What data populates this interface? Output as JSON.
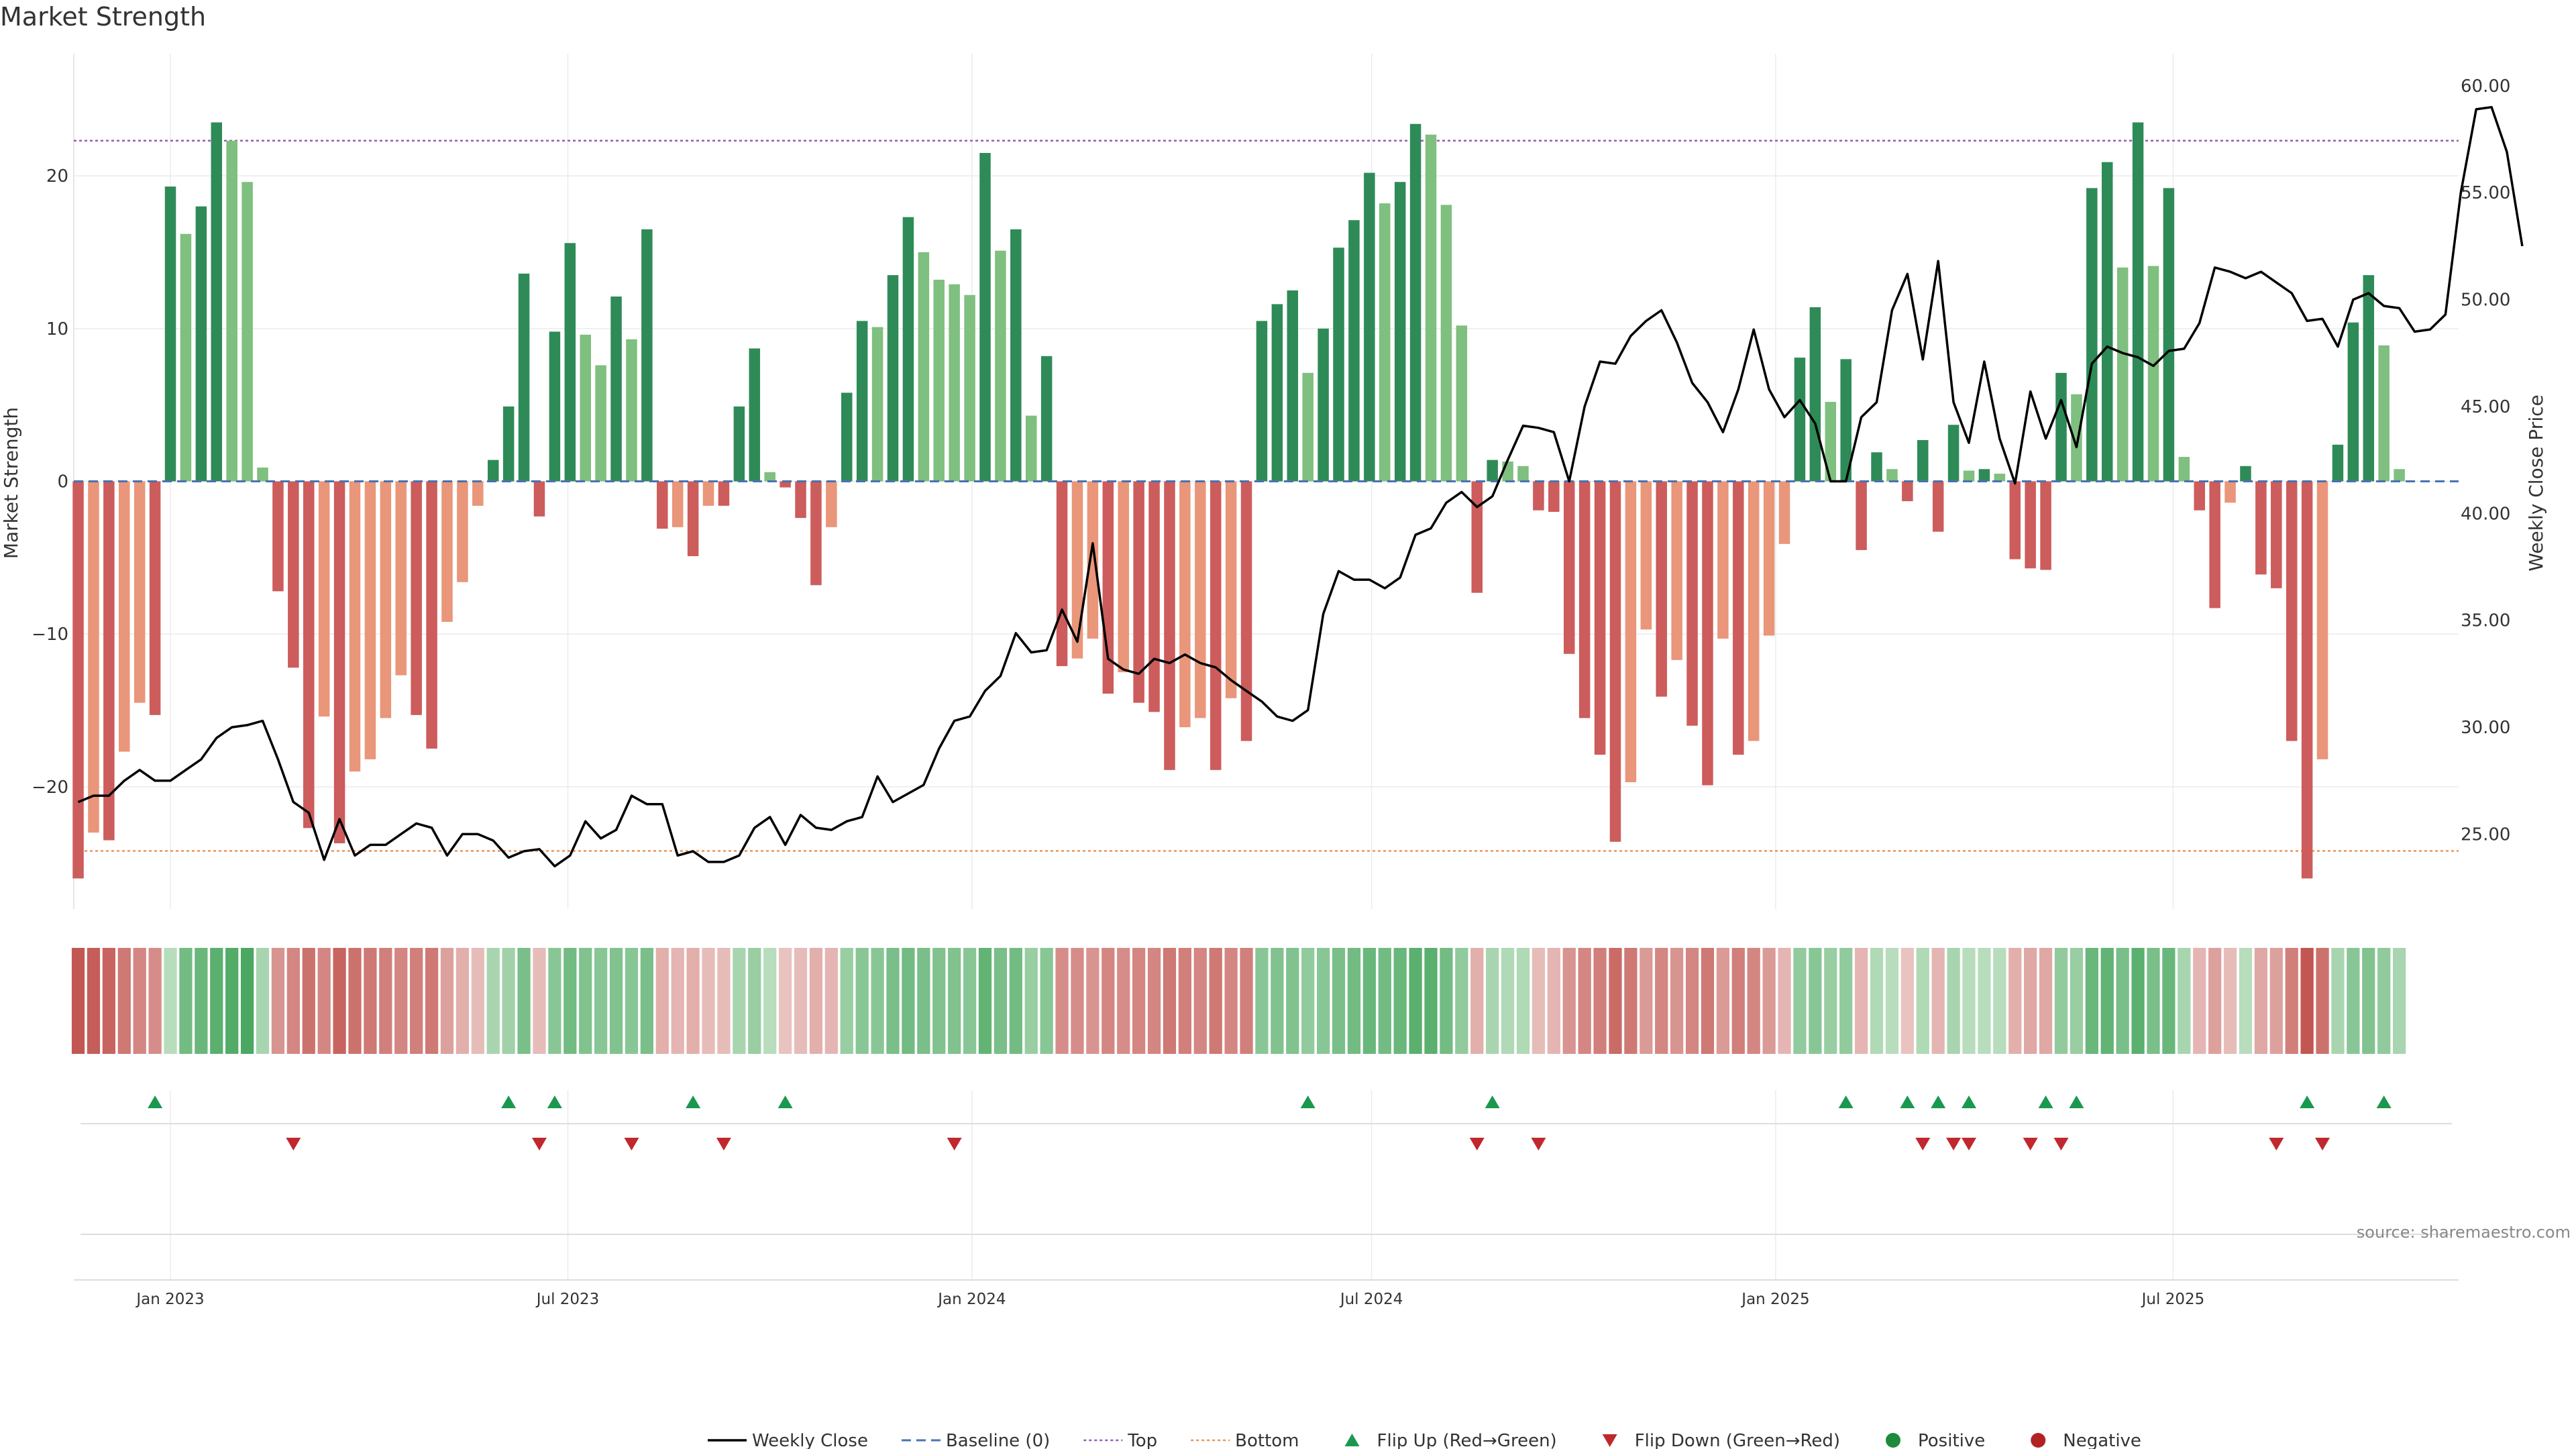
{
  "chart_data": {
    "type": "bar",
    "title": "Market Strength",
    "ylabel_left": "Market Strength",
    "ylabel_right": "Weekly Close Price",
    "source": "source: sharemaestro.com",
    "ylim_left": [
      -28,
      28
    ],
    "ylim_right": [
      21.5,
      61.5
    ],
    "y_ticks_left": [
      {
        "value": 20,
        "label": "20"
      },
      {
        "value": 10,
        "label": "10"
      },
      {
        "value": 0,
        "label": "0"
      },
      {
        "value": -10,
        "label": "−10"
      },
      {
        "value": -20,
        "label": "−20"
      }
    ],
    "y_ticks_right": [
      {
        "value": 60,
        "label": "60.00"
      },
      {
        "value": 55,
        "label": "55.00"
      },
      {
        "value": 50,
        "label": "50.00"
      },
      {
        "value": 45,
        "label": "45.00"
      },
      {
        "value": 40,
        "label": "40.00"
      },
      {
        "value": 35,
        "label": "35.00"
      },
      {
        "value": 30,
        "label": "30.00"
      },
      {
        "value": 25,
        "label": "25.00"
      }
    ],
    "x_ticks": [
      {
        "date": "2023-01-01",
        "label": "Jan 2023"
      },
      {
        "date": "2023-07-01",
        "label": "Jul 2023"
      },
      {
        "date": "2024-01-01",
        "label": "Jan 2024"
      },
      {
        "date": "2024-07-01",
        "label": "Jul 2024"
      },
      {
        "date": "2025-01-01",
        "label": "Jan 2025"
      },
      {
        "date": "2025-07-01",
        "label": "Jul 2025"
      }
    ],
    "x_range": [
      "2022-11-18",
      "2025-11-08"
    ],
    "top_level": 22.3,
    "bottom_level": -24.2,
    "first_week": "2022-11-20",
    "strength": [
      -26,
      -23,
      -23.5,
      -17.7,
      -14.5,
      -15.3,
      19.3,
      16.2,
      18,
      23.5,
      22.3,
      19.6,
      0.9,
      -7.2,
      -12.2,
      -22.7,
      -15.4,
      -23.7,
      -19,
      -18.2,
      -15.5,
      -12.7,
      -15.3,
      -17.5,
      -9.2,
      -6.6,
      -1.6,
      1.4,
      4.9,
      13.6,
      -2.3,
      9.8,
      15.6,
      9.6,
      7.6,
      12.1,
      9.3,
      16.5,
      -3.1,
      -3,
      -4.9,
      -1.6,
      -1.6,
      4.9,
      8.7,
      0.6,
      -0.4,
      -2.4,
      -6.8,
      -3,
      5.8,
      10.5,
      10.1,
      13.5,
      17.3,
      15,
      13.2,
      12.9,
      12.2,
      21.5,
      15.1,
      16.5,
      4.3,
      8.2,
      -12.1,
      -11.6,
      -10.3,
      -13.9,
      -12.5,
      -14.5,
      -15.1,
      -18.9,
      -16.1,
      -15.5,
      -18.9,
      -14.2,
      -17,
      10.5,
      11.6,
      12.5,
      7.1,
      10,
      15.3,
      17.1,
      20.2,
      18.2,
      19.6,
      23.4,
      22.7,
      18.1,
      10.2,
      -7.3,
      1.4,
      1.3,
      1,
      -1.9,
      -2,
      -11.3,
      -15.5,
      -17.9,
      -23.6,
      -19.7,
      -9.7,
      -14.1,
      -11.7,
      -16,
      -19.9,
      -10.3,
      -17.9,
      -17,
      -10.1,
      -4.1,
      8.1,
      11.4,
      5.2,
      8,
      -4.5,
      1.9,
      0.8,
      -1.3,
      2.7,
      -3.3,
      3.7,
      0.7,
      0.8,
      0.5,
      -5.1,
      -5.7,
      -5.8,
      7.1,
      5.7,
      19.2,
      20.9,
      14,
      23.5,
      14.1,
      19.2,
      1.6,
      -1.9,
      -8.3,
      -1.4,
      1,
      -6.1,
      -7,
      -17,
      -26,
      -18.2,
      2.4,
      10.4,
      13.5,
      8.9,
      0.8
    ],
    "close": [
      26.5,
      26.8,
      26.8,
      27.5,
      28.0,
      27.5,
      27.5,
      28.0,
      28.5,
      29.5,
      30.0,
      30.1,
      30.3,
      28.5,
      26.5,
      26.0,
      23.8,
      25.7,
      24.0,
      24.5,
      24.5,
      25.0,
      25.5,
      25.3,
      24.0,
      25.0,
      25.0,
      24.7,
      23.9,
      24.2,
      24.3,
      23.5,
      24.0,
      25.6,
      24.8,
      25.2,
      26.8,
      26.4,
      26.4,
      24.0,
      24.2,
      23.7,
      23.7,
      24.0,
      25.3,
      25.8,
      24.5,
      25.9,
      25.3,
      25.2,
      25.6,
      25.8,
      27.7,
      26.5,
      26.9,
      27.3,
      29.0,
      30.3,
      30.5,
      31.7,
      32.4,
      34.4,
      33.5,
      33.6,
      35.5,
      34.0,
      38.6,
      33.2,
      32.7,
      32.5,
      33.2,
      33.0,
      33.4,
      33.0,
      32.8,
      32.2,
      31.7,
      31.2,
      30.5,
      30.3,
      30.8,
      35.3,
      37.3,
      36.9,
      36.9,
      36.5,
      37.0,
      39.0,
      39.3,
      40.5,
      41.0,
      40.3,
      40.8,
      42.5,
      44.1,
      44.0,
      43.8,
      41.5,
      45.0,
      47.1,
      47.0,
      48.3,
      49.0,
      49.5,
      48.0,
      46.1,
      45.2,
      43.8,
      45.8,
      48.6,
      45.8,
      44.5,
      45.3,
      44.2,
      41.5,
      41.5,
      44.5,
      45.2,
      49.5,
      51.2,
      47.2,
      51.8,
      45.2,
      43.3,
      47.1,
      43.5,
      41.4,
      45.7,
      43.5,
      45.3,
      43.1,
      47.0,
      47.8,
      47.5,
      47.3,
      46.9,
      47.6,
      47.7,
      48.9,
      51.5,
      51.3,
      51.0,
      51.3,
      50.8,
      50.3,
      49.0,
      49.1,
      47.8,
      50.0,
      50.3,
      49.7,
      49.6,
      48.5,
      48.6,
      49.3,
      55.0,
      58.9,
      59.0,
      56.9,
      52.5
    ],
    "heat": [
      -0.95,
      -0.9,
      -0.85,
      -0.7,
      -0.6,
      -0.55,
      0.2,
      0.65,
      0.7,
      0.8,
      0.85,
      0.9,
      0.3,
      -0.5,
      -0.6,
      -0.75,
      -0.6,
      -0.85,
      -0.75,
      -0.7,
      -0.65,
      -0.6,
      -0.65,
      -0.7,
      -0.4,
      -0.3,
      -0.2,
      0.3,
      0.35,
      0.6,
      -0.2,
      0.5,
      0.65,
      0.55,
      0.5,
      0.55,
      0.5,
      0.6,
      -0.3,
      -0.25,
      -0.3,
      -0.2,
      -0.2,
      0.3,
      0.4,
      0.2,
      -0.15,
      -0.2,
      -0.3,
      -0.25,
      0.4,
      0.5,
      0.5,
      0.6,
      0.65,
      0.6,
      0.55,
      0.55,
      0.5,
      0.75,
      0.6,
      0.65,
      0.4,
      0.5,
      -0.55,
      -0.55,
      -0.5,
      -0.6,
      -0.55,
      -0.6,
      -0.6,
      -0.7,
      -0.65,
      -0.6,
      -0.7,
      -0.6,
      -0.65,
      0.5,
      0.55,
      0.55,
      0.45,
      0.5,
      0.6,
      0.65,
      0.7,
      0.65,
      0.7,
      0.8,
      0.8,
      0.65,
      0.45,
      -0.3,
      0.3,
      0.25,
      0.25,
      -0.2,
      -0.25,
      -0.5,
      -0.6,
      -0.65,
      -0.8,
      -0.7,
      -0.45,
      -0.6,
      -0.5,
      -0.6,
      -0.7,
      -0.45,
      -0.65,
      -0.6,
      -0.45,
      -0.25,
      0.45,
      0.5,
      0.4,
      0.45,
      -0.25,
      0.25,
      0.2,
      -0.15,
      0.25,
      -0.25,
      0.3,
      0.2,
      0.2,
      0.2,
      -0.3,
      -0.35,
      -0.35,
      0.45,
      0.4,
      0.7,
      0.75,
      0.6,
      0.8,
      0.6,
      0.7,
      0.3,
      -0.25,
      -0.4,
      -0.2,
      0.2,
      -0.35,
      -0.4,
      -0.65,
      -0.95,
      -0.75,
      0.3,
      0.5,
      0.55,
      0.45,
      0.3
    ],
    "flips_up": [
      "2022-12-25",
      "2023-06-04",
      "2023-06-25",
      "2023-08-27",
      "2023-10-08",
      "2024-06-02",
      "2024-08-25",
      "2025-02-02",
      "2025-03-02",
      "2025-03-16",
      "2025-03-30",
      "2025-05-04",
      "2025-05-18",
      "2025-08-31",
      "2025-10-05"
    ],
    "flips_down": [
      "2023-02-26",
      "2023-06-18",
      "2023-07-30",
      "2023-09-10",
      "2023-12-24",
      "2024-08-18",
      "2024-09-15",
      "2025-03-09",
      "2025-03-23",
      "2025-03-30",
      "2025-04-27",
      "2025-05-11",
      "2025-08-17",
      "2025-09-07"
    ],
    "legend": [
      {
        "type": "line",
        "color": "#000000",
        "label": "Weekly Close"
      },
      {
        "type": "dash",
        "color": "#4a72b0",
        "label": "Baseline (0)"
      },
      {
        "type": "dot",
        "color": "#9b59b6",
        "label": "Top"
      },
      {
        "type": "dot",
        "color": "#e8955a",
        "label": "Bottom"
      },
      {
        "type": "tri-up",
        "color": "#1a9850",
        "label": "Flip Up (Red→Green)"
      },
      {
        "type": "tri-down",
        "color": "#c0282d",
        "label": "Flip Down (Green→Red)"
      },
      {
        "type": "circle",
        "color": "#1e8a3c",
        "label": "Positive"
      },
      {
        "type": "circle",
        "color": "#b22222",
        "label": "Negative"
      }
    ],
    "grid": true,
    "legend_placement": "bottom-center"
  },
  "colors": {
    "pos_strong": "#2e8b57",
    "pos_light": "#7fbf7f",
    "neg_strong": "#cd5c5c",
    "neg_light": "#e9967a",
    "price_line": "#000000",
    "top_line": "#9b59b6",
    "bottom_line": "#e8955a",
    "baseline": "#4a72b0"
  }
}
